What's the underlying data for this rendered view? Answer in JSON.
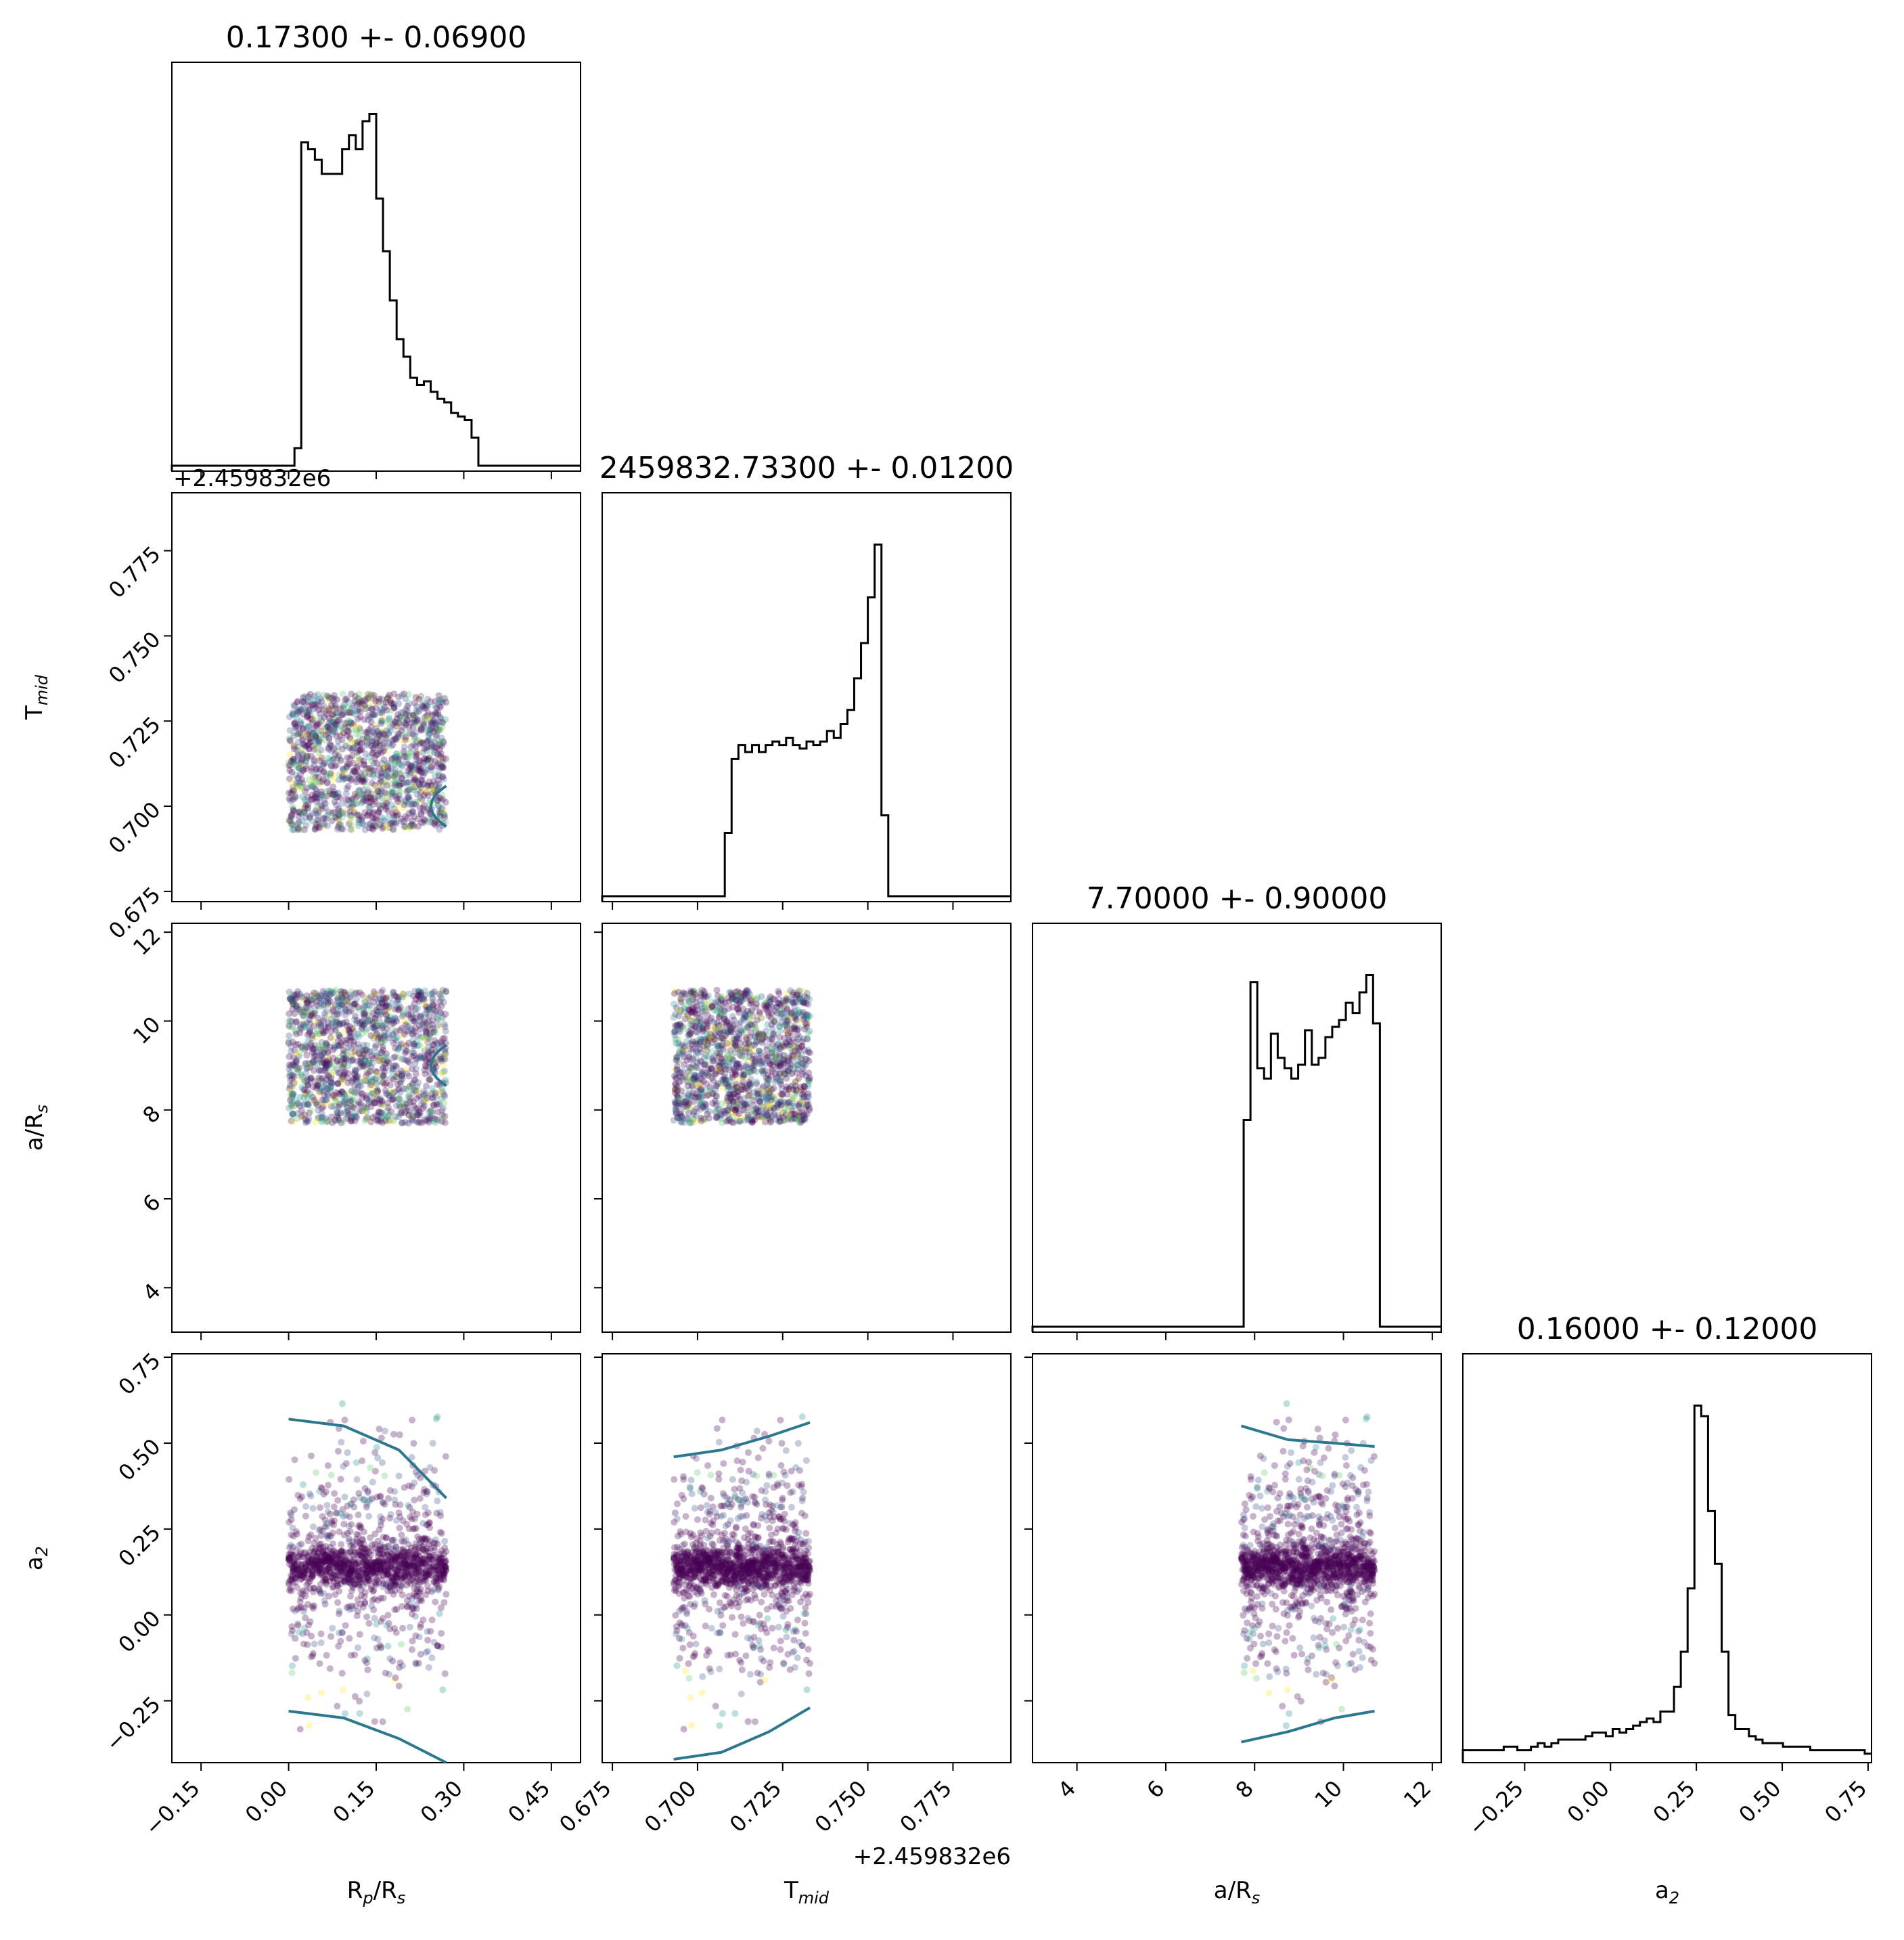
{
  "chart_data": {
    "type": "corner",
    "parameters": [
      {
        "key": "rp",
        "label": "R",
        "sub": "p",
        "label2": "/R",
        "sub2": "s",
        "range": [
          -0.2,
          0.5
        ],
        "ticks": [
          -0.15,
          0.0,
          0.15,
          0.3,
          0.45
        ],
        "tick_labels": [
          "−0.15",
          "0.00",
          "0.15",
          "0.30",
          "0.45"
        ],
        "title": "0.17300 +- 0.06900"
      },
      {
        "key": "tmid",
        "label": "T",
        "sub": "mid",
        "label2": "",
        "sub2": "",
        "range": [
          0.672,
          0.792
        ],
        "ticks": [
          0.675,
          0.7,
          0.725,
          0.75,
          0.775
        ],
        "tick_labels": [
          "0.675",
          "0.700",
          "0.725",
          "0.750",
          "0.775"
        ],
        "offset": "+2.459832e6",
        "title": "2459832.73300 +- 0.01200"
      },
      {
        "key": "ar",
        "label": "a/R",
        "sub": "s",
        "label2": "",
        "sub2": "",
        "range": [
          3.0,
          12.2
        ],
        "ticks": [
          4,
          6,
          8,
          10,
          12
        ],
        "tick_labels": [
          "4",
          "6",
          "8",
          "10",
          "12"
        ],
        "title": "7.70000 +- 0.90000"
      },
      {
        "key": "a2",
        "label": "a",
        "sub": "2",
        "label2": "",
        "sub2": "",
        "range": [
          -0.43,
          0.76
        ],
        "ticks": [
          -0.25,
          0.0,
          0.25,
          0.5,
          0.75
        ],
        "tick_labels": [
          "−0.25",
          "0.00",
          "0.25",
          "0.50",
          "0.75"
        ],
        "title": "0.16000 +- 0.12000"
      }
    ],
    "histograms": [
      [
        0,
        0,
        0,
        0,
        0,
        0,
        0,
        0,
        0,
        0,
        0,
        0,
        0,
        0,
        0,
        0,
        0,
        0,
        0.05,
        0.92,
        0.9,
        0.87,
        0.83,
        0.83,
        0.83,
        0.9,
        0.94,
        0.9,
        0.98,
        1.0,
        0.76,
        0.61,
        0.47,
        0.36,
        0.31,
        0.25,
        0.23,
        0.24,
        0.21,
        0.19,
        0.18,
        0.15,
        0.14,
        0.13,
        0.08,
        0,
        0,
        0,
        0,
        0,
        0,
        0,
        0,
        0,
        0,
        0,
        0,
        0,
        0,
        0
      ],
      [
        0,
        0,
        0,
        0,
        0,
        0,
        0,
        0,
        0,
        0,
        0,
        0,
        0,
        0,
        0,
        0,
        0,
        0,
        0.18,
        0.39,
        0.43,
        0.41,
        0.43,
        0.41,
        0.43,
        0.44,
        0.43,
        0.45,
        0.43,
        0.42,
        0.44,
        0.43,
        0.44,
        0.47,
        0.45,
        0.49,
        0.53,
        0.62,
        0.72,
        0.85,
        1.0,
        0.23,
        0,
        0,
        0,
        0,
        0,
        0,
        0,
        0,
        0,
        0,
        0,
        0,
        0,
        0,
        0,
        0,
        0,
        0
      ],
      [
        0,
        0,
        0,
        0,
        0,
        0,
        0,
        0,
        0,
        0,
        0,
        0,
        0,
        0,
        0,
        0,
        0,
        0,
        0,
        0,
        0,
        0,
        0,
        0,
        0,
        0,
        0,
        0,
        0,
        0,
        0,
        0.6,
        1.0,
        0.75,
        0.72,
        0.85,
        0.78,
        0.75,
        0.72,
        0.76,
        0.86,
        0.76,
        0.78,
        0.84,
        0.87,
        0.89,
        0.94,
        0.91,
        0.97,
        1.02,
        0.88,
        0,
        0,
        0,
        0,
        0,
        0,
        0,
        0,
        0
      ],
      [
        0.02,
        0.02,
        0.02,
        0.02,
        0.02,
        0.02,
        0.03,
        0.03,
        0.02,
        0.02,
        0.03,
        0.04,
        0.03,
        0.04,
        0.05,
        0.05,
        0.05,
        0.05,
        0.06,
        0.07,
        0.07,
        0.06,
        0.08,
        0.07,
        0.08,
        0.09,
        0.1,
        0.11,
        0.1,
        0.13,
        0.13,
        0.2,
        0.3,
        0.48,
        1.0,
        0.97,
        0.7,
        0.55,
        0.3,
        0.12,
        0.08,
        0.08,
        0.06,
        0.05,
        0.04,
        0.04,
        0.04,
        0.03,
        0.03,
        0.03,
        0.03,
        0.02,
        0.02,
        0.02,
        0.02,
        0.02,
        0.02,
        0.02,
        0.02,
        0.01
      ]
    ],
    "sample_boxes": {
      "rp": [
        0.0,
        0.27
      ],
      "tmid": [
        0.693,
        0.733
      ],
      "ar": [
        7.7,
        10.7
      ],
      "a2": [
        -0.43,
        0.76
      ]
    },
    "colormap": [
      "#440154",
      "#3b528b",
      "#21918c",
      "#5ec962",
      "#fde725"
    ],
    "contour_color": "#2a788e",
    "hist_color": "#000000"
  }
}
